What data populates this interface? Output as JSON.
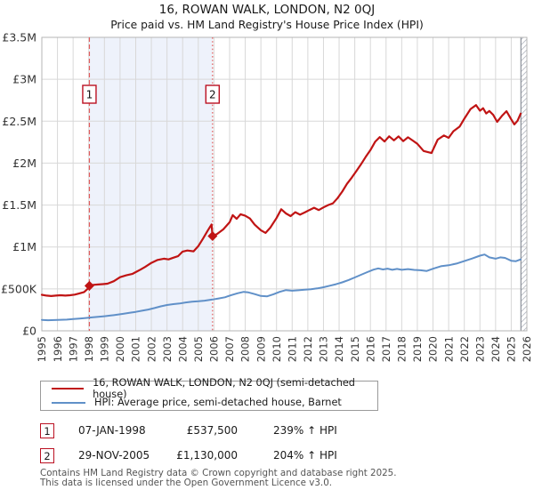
{
  "chart_data": {
    "type": "line",
    "title": "16, ROWAN WALK, LONDON, N2 0QJ",
    "subtitle": "Price paid vs. HM Land Registry's House Price Index (HPI)",
    "x_axis": {
      "range": [
        1995,
        2026
      ],
      "ticks": [
        1995,
        1996,
        1997,
        1998,
        1999,
        2000,
        2001,
        2002,
        2003,
        2004,
        2005,
        2006,
        2007,
        2008,
        2009,
        2010,
        2011,
        2012,
        2013,
        2014,
        2015,
        2016,
        2017,
        2018,
        2019,
        2020,
        2021,
        2022,
        2023,
        2024,
        2025,
        2026
      ]
    },
    "y_axis": {
      "range": [
        0,
        3500000
      ],
      "ticks": [
        {
          "v": 0,
          "label": "£0"
        },
        {
          "v": 500000,
          "label": "£500K"
        },
        {
          "v": 1000000,
          "label": "£1M"
        },
        {
          "v": 1500000,
          "label": "£1.5M"
        },
        {
          "v": 2000000,
          "label": "£2M"
        },
        {
          "v": 2500000,
          "label": "£2.5M"
        },
        {
          "v": 3000000,
          "label": "£3M"
        },
        {
          "v": 3500000,
          "label": "£3.5M"
        }
      ]
    },
    "series": [
      {
        "name": "16, ROWAN WALK, LONDON, N2 0QJ (semi-detached house)",
        "color": "#c01414",
        "width": 2.2,
        "points": [
          [
            1995.0,
            430000
          ],
          [
            1995.3,
            420000
          ],
          [
            1995.6,
            415000
          ],
          [
            1995.9,
            420000
          ],
          [
            1996.2,
            424000
          ],
          [
            1996.5,
            420000
          ],
          [
            1996.8,
            424000
          ],
          [
            1997.1,
            432000
          ],
          [
            1997.4,
            446000
          ],
          [
            1997.7,
            462000
          ],
          [
            1997.95,
            505000
          ],
          [
            1998.04,
            537500
          ],
          [
            1998.3,
            548000
          ],
          [
            1998.6,
            553000
          ],
          [
            1998.9,
            557000
          ],
          [
            1999.2,
            562000
          ],
          [
            1999.6,
            592000
          ],
          [
            2000.0,
            640000
          ],
          [
            2000.4,
            662000
          ],
          [
            2000.8,
            680000
          ],
          [
            2001.0,
            700000
          ],
          [
            2001.3,
            730000
          ],
          [
            2001.6,
            762000
          ],
          [
            2002.0,
            810000
          ],
          [
            2002.4,
            845000
          ],
          [
            2002.8,
            860000
          ],
          [
            2003.1,
            852000
          ],
          [
            2003.4,
            872000
          ],
          [
            2003.7,
            890000
          ],
          [
            2004.0,
            945000
          ],
          [
            2004.3,
            958000
          ],
          [
            2004.7,
            948000
          ],
          [
            2005.0,
            1010000
          ],
          [
            2005.3,
            1100000
          ],
          [
            2005.6,
            1195000
          ],
          [
            2005.85,
            1268000
          ],
          [
            2005.91,
            1130000
          ],
          [
            2006.2,
            1155000
          ],
          [
            2006.6,
            1210000
          ],
          [
            2007.0,
            1295000
          ],
          [
            2007.2,
            1380000
          ],
          [
            2007.45,
            1335000
          ],
          [
            2007.7,
            1390000
          ],
          [
            2008.0,
            1372000
          ],
          [
            2008.3,
            1340000
          ],
          [
            2008.6,
            1266000
          ],
          [
            2009.0,
            1200000
          ],
          [
            2009.3,
            1168000
          ],
          [
            2009.6,
            1230000
          ],
          [
            2010.0,
            1345000
          ],
          [
            2010.3,
            1450000
          ],
          [
            2010.6,
            1400000
          ],
          [
            2010.9,
            1368000
          ],
          [
            2011.2,
            1415000
          ],
          [
            2011.5,
            1385000
          ],
          [
            2011.8,
            1412000
          ],
          [
            2012.1,
            1440000
          ],
          [
            2012.4,
            1468000
          ],
          [
            2012.7,
            1440000
          ],
          [
            2013.0,
            1472000
          ],
          [
            2013.3,
            1500000
          ],
          [
            2013.6,
            1520000
          ],
          [
            2013.9,
            1582000
          ],
          [
            2014.2,
            1660000
          ],
          [
            2014.5,
            1752000
          ],
          [
            2014.8,
            1825000
          ],
          [
            2015.1,
            1905000
          ],
          [
            2015.4,
            1985000
          ],
          [
            2015.7,
            2075000
          ],
          [
            2016.0,
            2155000
          ],
          [
            2016.3,
            2255000
          ],
          [
            2016.6,
            2310000
          ],
          [
            2016.9,
            2258000
          ],
          [
            2017.2,
            2320000
          ],
          [
            2017.5,
            2272000
          ],
          [
            2017.8,
            2318000
          ],
          [
            2018.1,
            2262000
          ],
          [
            2018.4,
            2308000
          ],
          [
            2018.7,
            2270000
          ],
          [
            2019.0,
            2230000
          ],
          [
            2019.4,
            2145000
          ],
          [
            2019.9,
            2120000
          ],
          [
            2020.3,
            2280000
          ],
          [
            2020.7,
            2330000
          ],
          [
            2021.0,
            2302000
          ],
          [
            2021.3,
            2380000
          ],
          [
            2021.7,
            2435000
          ],
          [
            2022.0,
            2530000
          ],
          [
            2022.4,
            2645000
          ],
          [
            2022.75,
            2692000
          ],
          [
            2023.0,
            2625000
          ],
          [
            2023.2,
            2655000
          ],
          [
            2023.4,
            2592000
          ],
          [
            2023.6,
            2622000
          ],
          [
            2023.85,
            2575000
          ],
          [
            2024.1,
            2492000
          ],
          [
            2024.4,
            2562000
          ],
          [
            2024.7,
            2620000
          ],
          [
            2025.0,
            2522000
          ],
          [
            2025.2,
            2462000
          ],
          [
            2025.4,
            2505000
          ],
          [
            2025.6,
            2590000
          ]
        ]
      },
      {
        "name": "HPI: Average price, semi-detached house, Barnet",
        "color": "#6090c8",
        "width": 2.0,
        "points": [
          [
            1995.0,
            130000
          ],
          [
            1995.4,
            126000
          ],
          [
            1995.8,
            128000
          ],
          [
            1996.2,
            131000
          ],
          [
            1996.6,
            134000
          ],
          [
            1997.0,
            140000
          ],
          [
            1997.4,
            146000
          ],
          [
            1997.8,
            153000
          ],
          [
            1998.2,
            160000
          ],
          [
            1998.6,
            167000
          ],
          [
            1999.0,
            174000
          ],
          [
            1999.4,
            182000
          ],
          [
            1999.8,
            192000
          ],
          [
            2000.2,
            203000
          ],
          [
            2000.6,
            214000
          ],
          [
            2001.0,
            226000
          ],
          [
            2001.4,
            240000
          ],
          [
            2001.8,
            253000
          ],
          [
            2002.2,
            272000
          ],
          [
            2002.6,
            292000
          ],
          [
            2003.0,
            308000
          ],
          [
            2003.4,
            318000
          ],
          [
            2003.8,
            326000
          ],
          [
            2004.2,
            338000
          ],
          [
            2004.6,
            348000
          ],
          [
            2005.0,
            352000
          ],
          [
            2005.4,
            360000
          ],
          [
            2005.91,
            373000
          ],
          [
            2006.3,
            386000
          ],
          [
            2006.7,
            400000
          ],
          [
            2007.1,
            425000
          ],
          [
            2007.5,
            448000
          ],
          [
            2007.9,
            465000
          ],
          [
            2008.2,
            458000
          ],
          [
            2008.6,
            438000
          ],
          [
            2009.0,
            416000
          ],
          [
            2009.4,
            412000
          ],
          [
            2009.8,
            436000
          ],
          [
            2010.2,
            465000
          ],
          [
            2010.6,
            486000
          ],
          [
            2011.0,
            478000
          ],
          [
            2011.4,
            484000
          ],
          [
            2011.8,
            490000
          ],
          [
            2012.2,
            496000
          ],
          [
            2012.6,
            506000
          ],
          [
            2013.0,
            520000
          ],
          [
            2013.4,
            538000
          ],
          [
            2013.8,
            556000
          ],
          [
            2014.2,
            578000
          ],
          [
            2014.6,
            606000
          ],
          [
            2015.0,
            636000
          ],
          [
            2015.4,
            668000
          ],
          [
            2015.8,
            700000
          ],
          [
            2016.2,
            730000
          ],
          [
            2016.5,
            745000
          ],
          [
            2016.8,
            732000
          ],
          [
            2017.1,
            741000
          ],
          [
            2017.4,
            728000
          ],
          [
            2017.7,
            738000
          ],
          [
            2018.0,
            728000
          ],
          [
            2018.4,
            736000
          ],
          [
            2018.8,
            726000
          ],
          [
            2019.2,
            722000
          ],
          [
            2019.6,
            714000
          ],
          [
            2020.0,
            740000
          ],
          [
            2020.5,
            770000
          ],
          [
            2021.0,
            782000
          ],
          [
            2021.5,
            802000
          ],
          [
            2022.0,
            832000
          ],
          [
            2022.5,
            862000
          ],
          [
            2023.0,
            896000
          ],
          [
            2023.3,
            910000
          ],
          [
            2023.6,
            876000
          ],
          [
            2024.0,
            860000
          ],
          [
            2024.3,
            876000
          ],
          [
            2024.6,
            870000
          ],
          [
            2025.0,
            836000
          ],
          [
            2025.3,
            830000
          ],
          [
            2025.6,
            852000
          ]
        ]
      }
    ],
    "sale_markers": [
      {
        "x": 1998.04,
        "price": 537500
      },
      {
        "x": 2005.91,
        "price": 1130000
      }
    ],
    "events": [
      {
        "label": "1",
        "x": 1998.04,
        "style": "dashed"
      },
      {
        "label": "2",
        "x": 2005.91,
        "style": "dotted"
      }
    ],
    "shaded_region": {
      "from": 1998.04,
      "to": 2005.91,
      "color": "#eef2fb"
    },
    "hatch_region": {
      "from": 2025.62,
      "to": 2026
    },
    "colors": {
      "grid": "#d8d8d8",
      "border": "#b5b5b5",
      "event_line": "#e05c5c",
      "event_box_border": "#bb1122",
      "tick_text": "#333333",
      "hatch": "#b8bcc4"
    }
  },
  "legend": {
    "item1": "16, ROWAN WALK, LONDON, N2 0QJ (semi-detached house)",
    "item2": "HPI: Average price, semi-detached house, Barnet"
  },
  "annotations": {
    "rows": [
      {
        "num": "1",
        "date": "07-JAN-1998",
        "price": "£537,500",
        "hpi_change": "239% ↑ HPI"
      },
      {
        "num": "2",
        "date": "29-NOV-2005",
        "price": "£1,130,000",
        "hpi_change": "204% ↑ HPI"
      }
    ]
  },
  "footer": {
    "line1": "Contains HM Land Registry data © Crown copyright and database right 2025.",
    "line2": "This data is licensed under the Open Government Licence v3.0."
  }
}
